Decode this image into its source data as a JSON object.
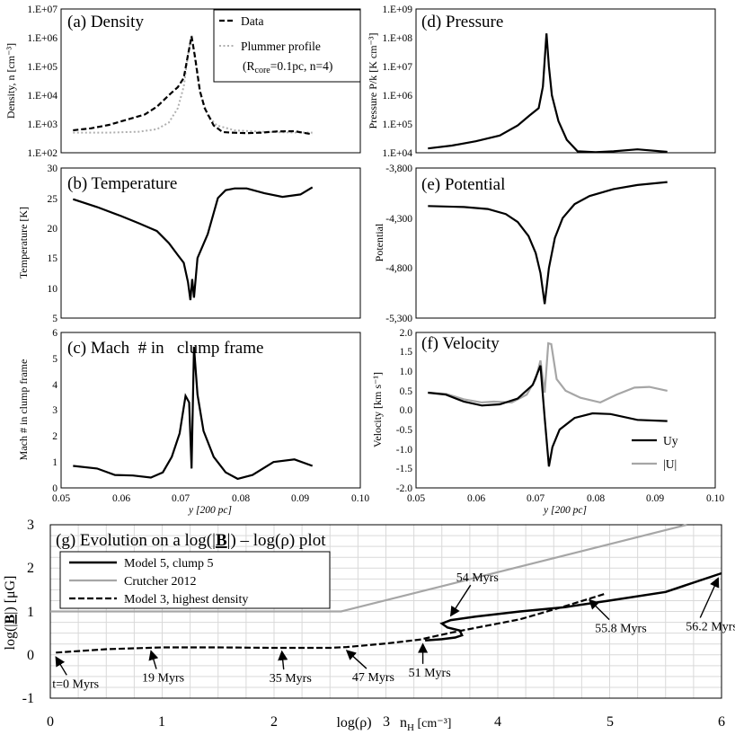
{
  "chart_data": [
    {
      "id": "a",
      "type": "line",
      "title": "(a) Density",
      "ylabel": "Density, n [cm⁻³]",
      "xlim": [
        0.05,
        0.1
      ],
      "ylog": true,
      "ylim_exp": [
        2,
        7
      ],
      "yticks": [
        "1.E+02",
        "1.E+03",
        "1.E+04",
        "1.E+05",
        "1.E+06",
        "1.E+07"
      ],
      "legend": {
        "data": "Data",
        "plummer": "Plummer profile",
        "params_core": "core",
        "params_rest": "=0.1pc, n=4)",
        "params_R": "(R"
      },
      "series": [
        {
          "name": "Data",
          "style": "dashed",
          "points": [
            [
              0.052,
              2.78
            ],
            [
              0.055,
              2.85
            ],
            [
              0.058,
              2.97
            ],
            [
              0.061,
              3.15
            ],
            [
              0.064,
              3.33
            ],
            [
              0.066,
              3.6
            ],
            [
              0.068,
              4.0
            ],
            [
              0.0695,
              4.28
            ],
            [
              0.0705,
              4.6
            ],
            [
              0.0712,
              5.4
            ],
            [
              0.0718,
              6.05
            ],
            [
              0.0724,
              5.3
            ],
            [
              0.0732,
              4.15
            ],
            [
              0.074,
              3.55
            ],
            [
              0.0755,
              2.95
            ],
            [
              0.077,
              2.72
            ],
            [
              0.0785,
              2.7
            ],
            [
              0.081,
              2.68
            ],
            [
              0.0835,
              2.7
            ],
            [
              0.086,
              2.74
            ],
            [
              0.089,
              2.75
            ],
            [
              0.092,
              2.64
            ]
          ]
        },
        {
          "name": "Plummer profile",
          "style": "dotted",
          "points": [
            [
              0.052,
              2.7
            ],
            [
              0.058,
              2.7
            ],
            [
              0.063,
              2.73
            ],
            [
              0.066,
              2.82
            ],
            [
              0.068,
              3.05
            ],
            [
              0.0695,
              3.55
            ],
            [
              0.0705,
              4.3
            ],
            [
              0.0712,
              5.4
            ],
            [
              0.0718,
              6.1
            ],
            [
              0.0724,
              5.2
            ],
            [
              0.0732,
              4.1
            ],
            [
              0.0745,
              3.3
            ],
            [
              0.076,
              2.95
            ],
            [
              0.079,
              2.78
            ],
            [
              0.083,
              2.73
            ],
            [
              0.088,
              2.71
            ],
            [
              0.092,
              2.7
            ]
          ]
        }
      ]
    },
    {
      "id": "b",
      "type": "line",
      "title": "(b) Temperature",
      "ylabel": "Temperature [K]",
      "xlim": [
        0.05,
        0.1
      ],
      "ylim": [
        5,
        30
      ],
      "yticks": [
        "5",
        "10",
        "15",
        "20",
        "25",
        "30"
      ],
      "series": [
        {
          "name": "Temperature",
          "points": [
            [
              0.052,
              24.8
            ],
            [
              0.056,
              23.5
            ],
            [
              0.06,
              22.0
            ],
            [
              0.063,
              20.8
            ],
            [
              0.066,
              19.5
            ],
            [
              0.068,
              17.5
            ],
            [
              0.0695,
              15.5
            ],
            [
              0.0705,
              14.2
            ],
            [
              0.0712,
              11.0
            ],
            [
              0.0716,
              8.0
            ],
            [
              0.0719,
              11.5
            ],
            [
              0.0722,
              8.4
            ],
            [
              0.0728,
              15.0
            ],
            [
              0.0745,
              19.0
            ],
            [
              0.0762,
              25.0
            ],
            [
              0.0775,
              26.3
            ],
            [
              0.079,
              26.6
            ],
            [
              0.081,
              26.6
            ],
            [
              0.084,
              25.8
            ],
            [
              0.087,
              25.2
            ],
            [
              0.09,
              25.6
            ],
            [
              0.092,
              26.8
            ]
          ]
        }
      ]
    },
    {
      "id": "c",
      "type": "line",
      "title": "(c) Mach  # in   clump frame",
      "ylabel": "Mach # in clump frame",
      "xlim": [
        0.05,
        0.1
      ],
      "ylim": [
        0,
        6
      ],
      "yticks": [
        "0",
        "1",
        "2",
        "3",
        "4",
        "5",
        "6"
      ],
      "xticks": [
        "0.05",
        "0.06",
        "0.07",
        "0.08",
        "0.09",
        "0.10"
      ],
      "xlabel": "y [200 pc]",
      "series": [
        {
          "name": "Mach",
          "points": [
            [
              0.052,
              0.85
            ],
            [
              0.056,
              0.75
            ],
            [
              0.059,
              0.5
            ],
            [
              0.062,
              0.48
            ],
            [
              0.065,
              0.4
            ],
            [
              0.067,
              0.6
            ],
            [
              0.0685,
              1.2
            ],
            [
              0.0698,
              2.1
            ],
            [
              0.0708,
              3.55
            ],
            [
              0.0714,
              3.3
            ],
            [
              0.0718,
              0.75
            ],
            [
              0.0722,
              5.45
            ],
            [
              0.0728,
              3.6
            ],
            [
              0.0738,
              2.2
            ],
            [
              0.0755,
              1.2
            ],
            [
              0.0775,
              0.6
            ],
            [
              0.0795,
              0.35
            ],
            [
              0.082,
              0.5
            ],
            [
              0.0855,
              1.0
            ],
            [
              0.089,
              1.1
            ],
            [
              0.092,
              0.85
            ]
          ]
        }
      ]
    },
    {
      "id": "d",
      "type": "line",
      "title": "(d) Pressure",
      "ylabel": "Pressure P/k [K cm⁻³]",
      "xlim": [
        0.05,
        0.1
      ],
      "ylog": true,
      "ylim_exp": [
        4,
        9
      ],
      "yticks": [
        "1.E+04",
        "1.E+05",
        "1.E+06",
        "1.E+07",
        "1.E+08",
        "1.E+09"
      ],
      "series": [
        {
          "name": "Pressure",
          "points": [
            [
              0.052,
              4.15
            ],
            [
              0.056,
              4.25
            ],
            [
              0.06,
              4.4
            ],
            [
              0.064,
              4.6
            ],
            [
              0.067,
              4.95
            ],
            [
              0.069,
              5.3
            ],
            [
              0.0705,
              5.55
            ],
            [
              0.0712,
              6.3
            ],
            [
              0.0718,
              8.15
            ],
            [
              0.0722,
              7.0
            ],
            [
              0.0727,
              6.0
            ],
            [
              0.0738,
              5.1
            ],
            [
              0.0752,
              4.45
            ],
            [
              0.077,
              4.05
            ],
            [
              0.08,
              4.02
            ],
            [
              0.083,
              4.05
            ],
            [
              0.087,
              4.12
            ],
            [
              0.092,
              4.03
            ]
          ]
        }
      ]
    },
    {
      "id": "e",
      "type": "line",
      "title": "(e) Potential",
      "ylabel": "Potential",
      "xlim": [
        0.05,
        0.1
      ],
      "ylim": [
        -5300,
        -3800
      ],
      "yticks": [
        "-5,300",
        "-4,800",
        "-4,300",
        "-3,800"
      ],
      "series": [
        {
          "name": "Potential",
          "points": [
            [
              0.052,
              -4180
            ],
            [
              0.058,
              -4190
            ],
            [
              0.062,
              -4210
            ],
            [
              0.065,
              -4260
            ],
            [
              0.067,
              -4340
            ],
            [
              0.0688,
              -4480
            ],
            [
              0.07,
              -4650
            ],
            [
              0.0708,
              -4850
            ],
            [
              0.0715,
              -5160
            ],
            [
              0.0722,
              -4800
            ],
            [
              0.0732,
              -4500
            ],
            [
              0.0745,
              -4300
            ],
            [
              0.0765,
              -4160
            ],
            [
              0.079,
              -4080
            ],
            [
              0.083,
              -4010
            ],
            [
              0.087,
              -3970
            ],
            [
              0.092,
              -3940
            ]
          ]
        }
      ]
    },
    {
      "id": "f",
      "type": "line",
      "title": "(f) Velocity",
      "ylabel": "Velocity [km s⁻¹]",
      "xlim": [
        0.05,
        0.1
      ],
      "ylim": [
        -2.0,
        2.0
      ],
      "yticks": [
        "-2.0",
        "-1.5",
        "-1.0",
        "-0.5",
        "0.0",
        "0.5",
        "1.0",
        "1.5",
        "2.0"
      ],
      "xticks": [
        "0.05",
        "0.06",
        "0.07",
        "0.08",
        "0.09",
        "0.10"
      ],
      "xlabel": "y [200 pc]",
      "legend": [
        "Uy",
        "|U|"
      ],
      "series": [
        {
          "name": "Uy",
          "color": "#000000",
          "points": [
            [
              0.052,
              0.45
            ],
            [
              0.055,
              0.4
            ],
            [
              0.058,
              0.22
            ],
            [
              0.061,
              0.12
            ],
            [
              0.064,
              0.15
            ],
            [
              0.067,
              0.3
            ],
            [
              0.0695,
              0.65
            ],
            [
              0.0708,
              1.15
            ],
            [
              0.0715,
              -0.2
            ],
            [
              0.0722,
              -1.45
            ],
            [
              0.0728,
              -0.95
            ],
            [
              0.074,
              -0.5
            ],
            [
              0.0765,
              -0.2
            ],
            [
              0.0795,
              -0.08
            ],
            [
              0.0825,
              -0.1
            ],
            [
              0.087,
              -0.25
            ],
            [
              0.092,
              -0.28
            ]
          ]
        },
        {
          "name": "|U|",
          "color": "#a6a6a6",
          "points": [
            [
              0.052,
              0.45
            ],
            [
              0.055,
              0.42
            ],
            [
              0.058,
              0.28
            ],
            [
              0.061,
              0.2
            ],
            [
              0.063,
              0.22
            ],
            [
              0.066,
              0.2
            ],
            [
              0.0685,
              0.4
            ],
            [
              0.07,
              0.8
            ],
            [
              0.0708,
              1.28
            ],
            [
              0.0715,
              0.45
            ],
            [
              0.0721,
              1.72
            ],
            [
              0.0726,
              1.7
            ],
            [
              0.0735,
              0.8
            ],
            [
              0.075,
              0.5
            ],
            [
              0.0775,
              0.32
            ],
            [
              0.0808,
              0.2
            ],
            [
              0.0835,
              0.4
            ],
            [
              0.0865,
              0.58
            ],
            [
              0.089,
              0.6
            ],
            [
              0.092,
              0.5
            ]
          ]
        }
      ]
    },
    {
      "id": "g",
      "type": "line",
      "title_prefix": "(g) Evolution on a log(|",
      "title_B": "B",
      "title_suffix": "|) – log(ρ) plot",
      "ylabel_prefix": "log(|",
      "ylabel_B": "B",
      "ylabel_suffix": "|) [μG]",
      "xlabel": "log(ρ)",
      "xlabel2": "n",
      "xlabel2_sub": "H",
      "xlabel2_unit": " [cm⁻³]",
      "xlim": [
        0,
        6
      ],
      "ylim": [
        -1,
        3
      ],
      "xticks": [
        "0",
        "1",
        "2",
        "3",
        "4",
        "5",
        "6"
      ],
      "yticks": [
        "-1",
        "0",
        "1",
        "2",
        "3"
      ],
      "legend": [
        "Model 5, clump 5",
        "Crutcher 2012",
        "Model 3, highest density"
      ],
      "series": [
        {
          "name": "Model 5, clump 5",
          "style": "solid",
          "color": "#000000",
          "points": [
            [
              3.35,
              0.33
            ],
            [
              3.5,
              0.36
            ],
            [
              3.62,
              0.4
            ],
            [
              3.68,
              0.45
            ],
            [
              3.66,
              0.56
            ],
            [
              3.55,
              0.63
            ],
            [
              3.5,
              0.72
            ],
            [
              3.58,
              0.8
            ],
            [
              3.8,
              0.88
            ],
            [
              4.2,
              1.0
            ],
            [
              4.6,
              1.1
            ],
            [
              5.0,
              1.25
            ],
            [
              5.5,
              1.45
            ],
            [
              6.0,
              1.88
            ]
          ]
        },
        {
          "name": "Crutcher 2012",
          "style": "solid",
          "color": "#a6a6a6",
          "points": [
            [
              0,
              1.0
            ],
            [
              2.6,
              1.0
            ],
            [
              6.0,
              3.2
            ]
          ]
        },
        {
          "name": "Model 3, highest density",
          "style": "dashed",
          "color": "#000000",
          "points": [
            [
              0.05,
              0.05
            ],
            [
              0.5,
              0.13
            ],
            [
              1.0,
              0.17
            ],
            [
              1.5,
              0.17
            ],
            [
              2.0,
              0.16
            ],
            [
              2.5,
              0.16
            ],
            [
              2.65,
              0.18
            ],
            [
              3.0,
              0.26
            ],
            [
              3.3,
              0.35
            ],
            [
              3.6,
              0.52
            ],
            [
              3.8,
              0.62
            ],
            [
              4.2,
              0.82
            ],
            [
              4.6,
              1.12
            ],
            [
              4.95,
              1.4
            ]
          ]
        }
      ],
      "annotations": [
        {
          "text": "t=0 Myrs",
          "x": 0.05,
          "y": 0.03
        },
        {
          "text": "19 Myrs",
          "x": 0.9,
          "y": 0.17
        },
        {
          "text": "35 Myrs",
          "x": 2.07,
          "y": 0.16
        },
        {
          "text": "47 Myrs",
          "x": 2.65,
          "y": 0.18
        },
        {
          "text": "51 Myrs",
          "x": 3.33,
          "y": 0.33
        },
        {
          "text": "54 Myrs",
          "x": 3.58,
          "y": 0.82
        },
        {
          "text": "55.8 Myrs",
          "x": 4.82,
          "y": 1.35
        },
        {
          "text": "56.2 Myrs",
          "x": 5.97,
          "y": 1.85
        }
      ]
    }
  ]
}
